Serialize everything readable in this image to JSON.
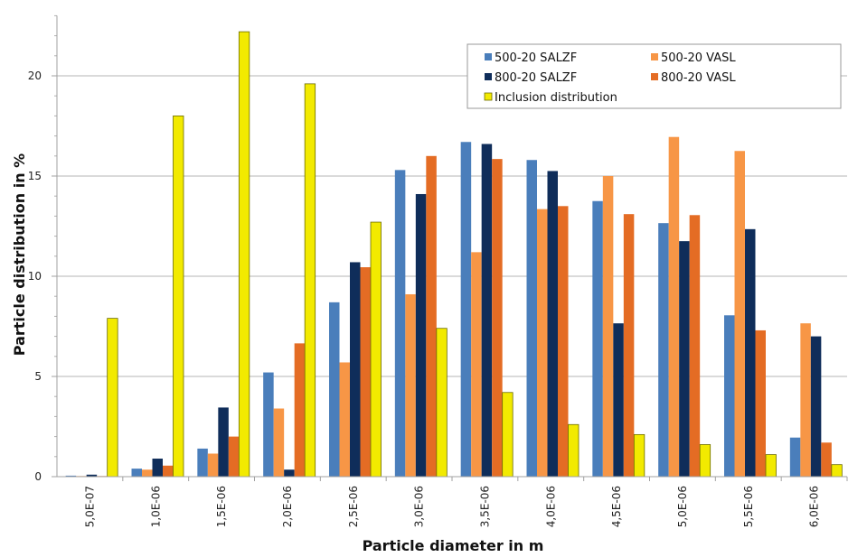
{
  "chart_data": {
    "type": "bar",
    "title": "",
    "xlabel": "Particle diameter in m",
    "ylabel": "Particle distribution in %",
    "ylim": [
      0,
      23
    ],
    "yticks": [
      0,
      5,
      10,
      15,
      20
    ],
    "yticks_labels": [
      "0",
      "5",
      "10",
      "15",
      "20"
    ],
    "minor_tick_step": 1,
    "grid": true,
    "legend_position": "top-right",
    "categories": [
      "5,0E-07",
      "1,0E-06",
      "1,5E-06",
      "2,0E-06",
      "2,5E-06",
      "3,0E-06",
      "3,5E-06",
      "4,0E-06",
      "4,5E-06",
      "5,0E-06",
      "5,5E-06",
      "6,0E-06"
    ],
    "series": [
      {
        "name": "500-20 SALZF",
        "color": "#4a7ebb",
        "outline": "",
        "values": [
          0.05,
          0.4,
          1.4,
          5.2,
          8.7,
          15.3,
          16.7,
          15.8,
          13.75,
          12.65,
          8.05,
          1.95
        ]
      },
      {
        "name": "500-20 VASL",
        "color": "#f79646",
        "outline": "",
        "values": [
          0.03,
          0.35,
          1.15,
          3.4,
          5.7,
          9.1,
          11.2,
          13.35,
          15.0,
          16.95,
          16.25,
          7.65
        ]
      },
      {
        "name": "800-20 SALZF",
        "color": "#0f2d5a",
        "outline": "",
        "values": [
          0.1,
          0.9,
          3.45,
          0.35,
          10.7,
          14.1,
          16.6,
          15.25,
          7.65,
          11.75,
          12.35,
          7.0
        ]
      },
      {
        "name": "800-20 VASL",
        "color": "#e46c24",
        "outline": "",
        "values": [
          0.03,
          0.55,
          2.0,
          6.65,
          10.45,
          16.0,
          15.85,
          13.5,
          13.1,
          13.05,
          7.3,
          1.7
        ]
      },
      {
        "name": "Inclusion distribution",
        "color": "#f2ea00",
        "outline": "#6b6b00",
        "values": [
          7.9,
          18.0,
          22.2,
          19.6,
          12.7,
          7.4,
          4.2,
          2.6,
          2.1,
          1.6,
          1.1,
          0.6
        ]
      }
    ],
    "legend_layout": [
      [
        0,
        1
      ],
      [
        2,
        3
      ],
      [
        4
      ]
    ]
  }
}
